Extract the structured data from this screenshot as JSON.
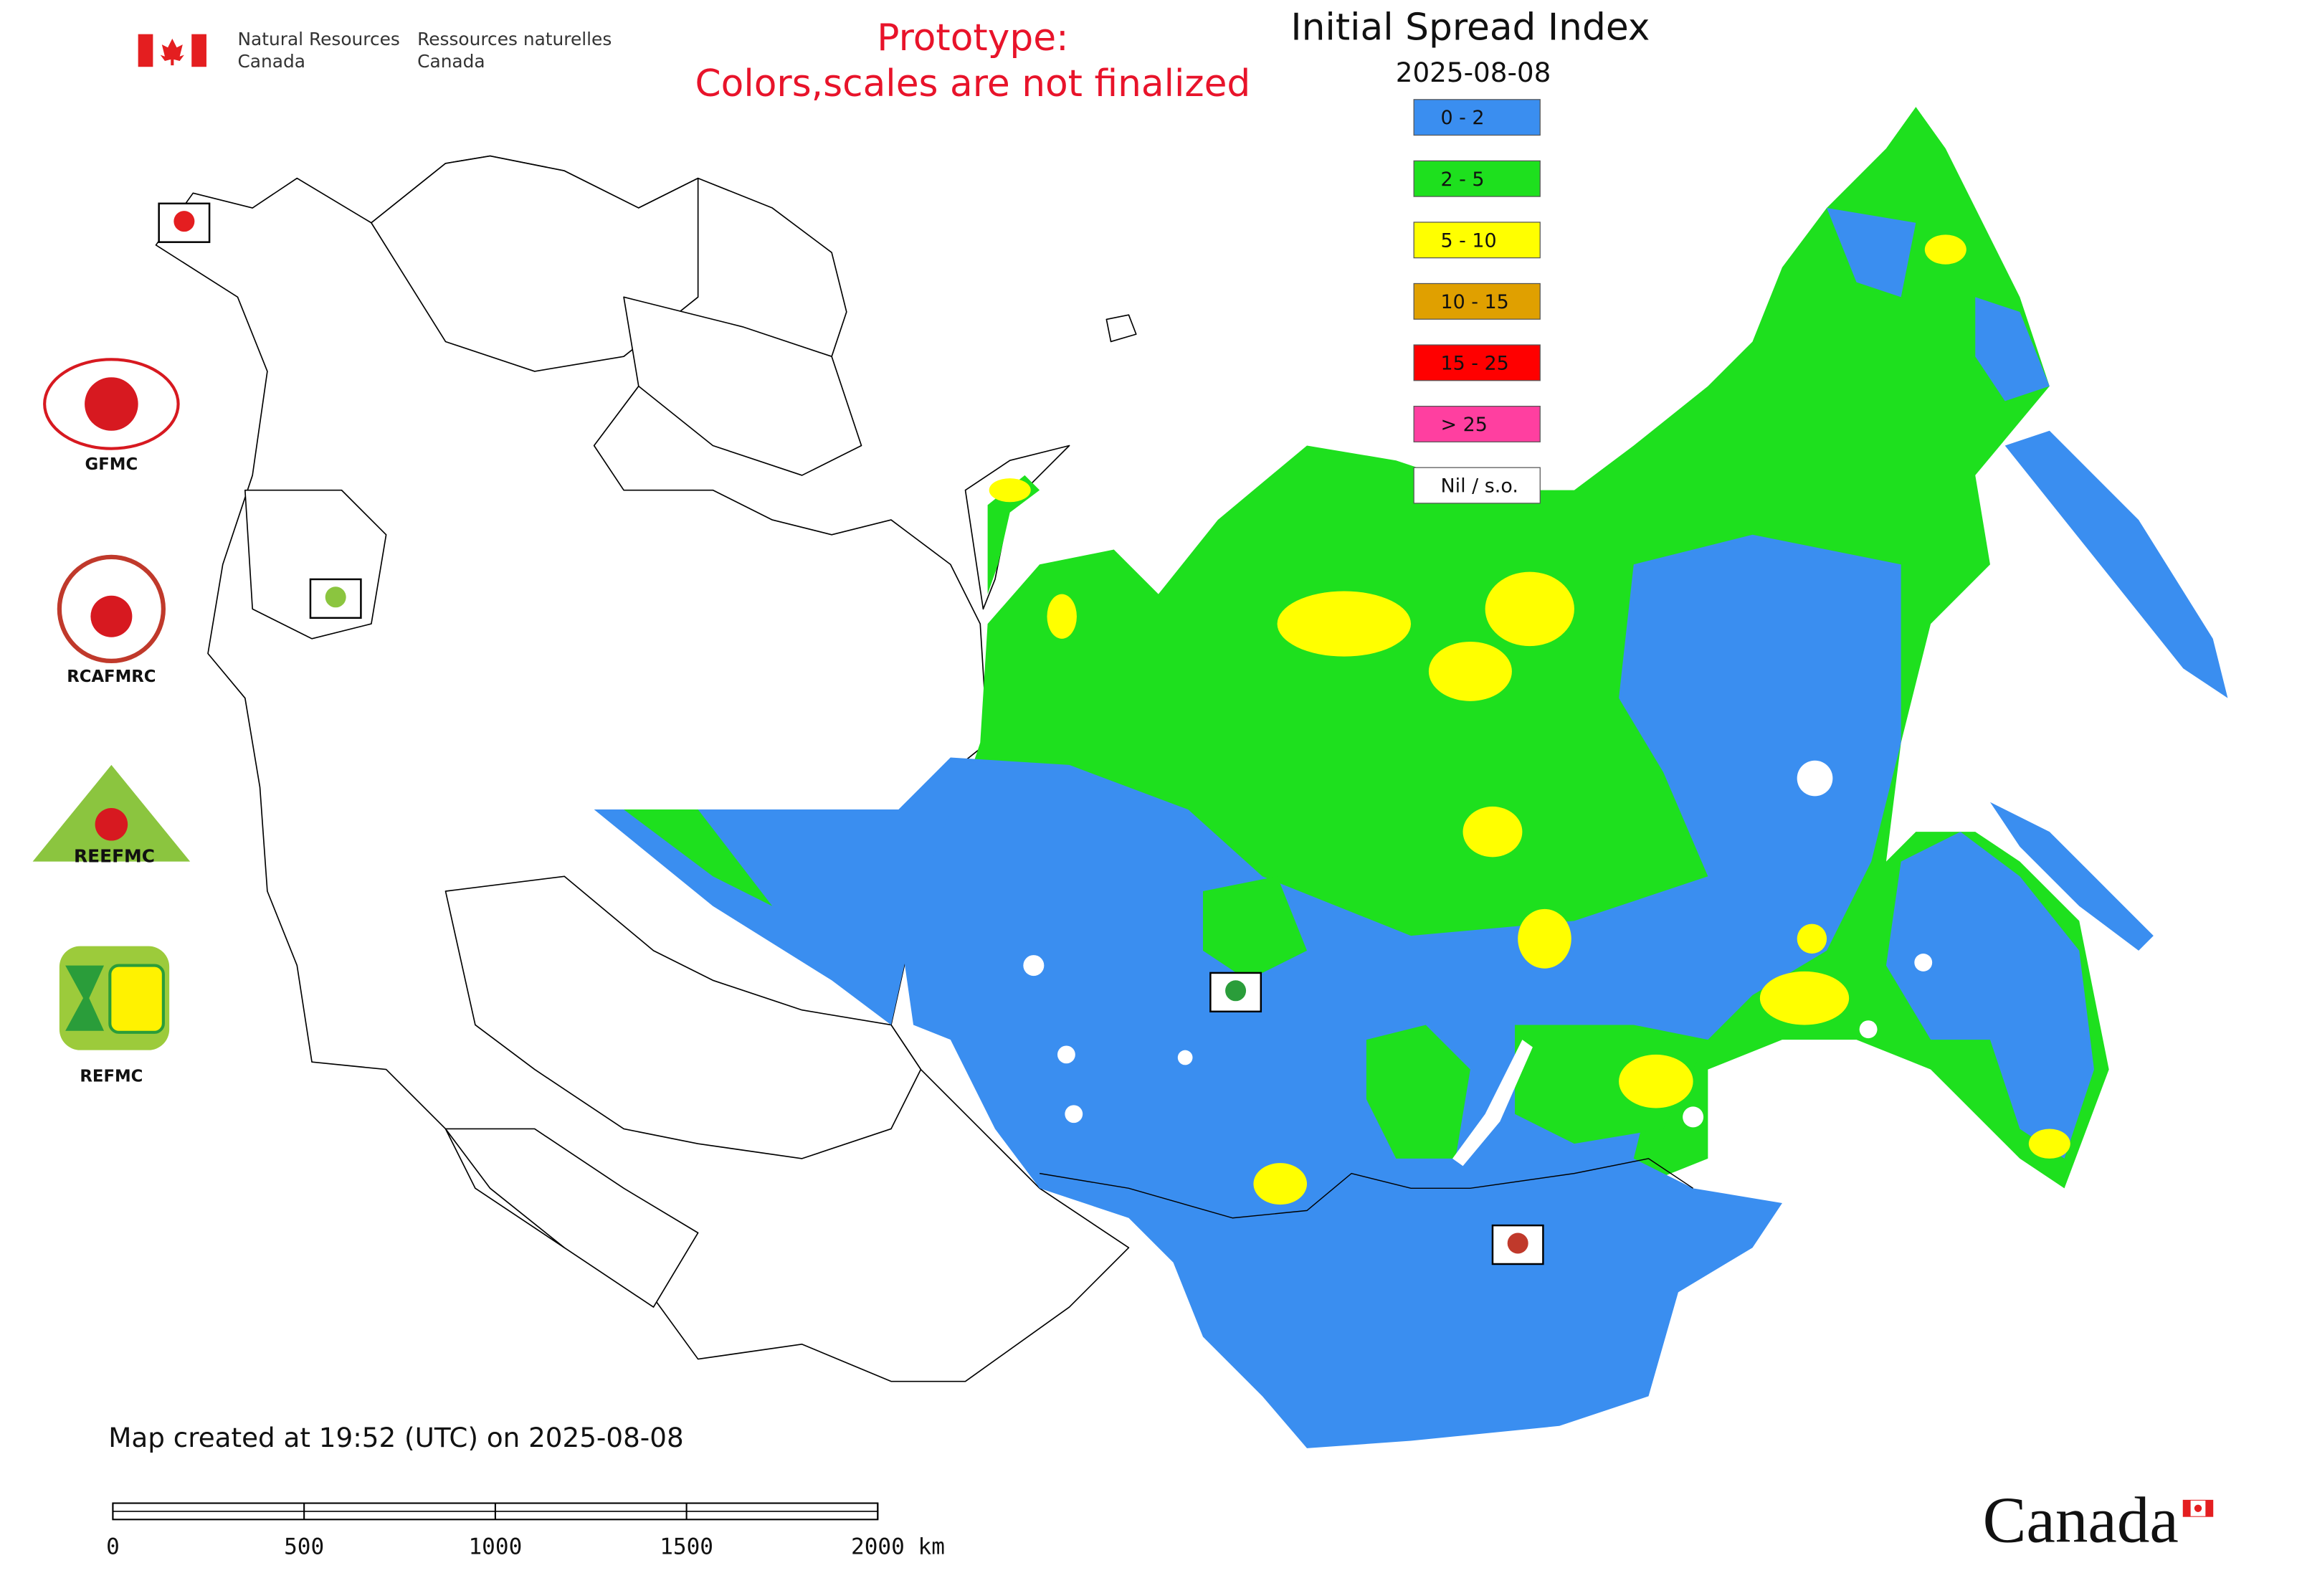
{
  "header": {
    "org_en": [
      "Natural Resources",
      "Canada"
    ],
    "org_fr": [
      "Ressources naturelles",
      "Canada"
    ]
  },
  "notice": [
    "Prototype:",
    "Colors,scales are not finalized"
  ],
  "title": "Initial Spread Index",
  "date": "2025-08-08",
  "legend": [
    {
      "label": "0 - 2",
      "color": "#3a8ef0"
    },
    {
      "label": "2 - 5",
      "color": "#1ee01e"
    },
    {
      "label": "5 - 10",
      "color": "#ffff00"
    },
    {
      "label": "10 - 15",
      "color": "#e0a000"
    },
    {
      "label": "15 - 25",
      "color": "#ff0000"
    },
    {
      "label": "> 25",
      "color": "#ff3fa0"
    },
    {
      "label": "Nil / s.o.",
      "color": "#ffffff"
    }
  ],
  "logos": [
    "GFMC",
    "RCAFMRC",
    "REEFMC",
    "REFMC"
  ],
  "footer": "Map created at 19:52 (UTC) on 2025-08-08",
  "scale_bar": [
    "0",
    "500",
    "1000",
    "1500",
    "2000 km"
  ],
  "wordmark": "Canada"
}
